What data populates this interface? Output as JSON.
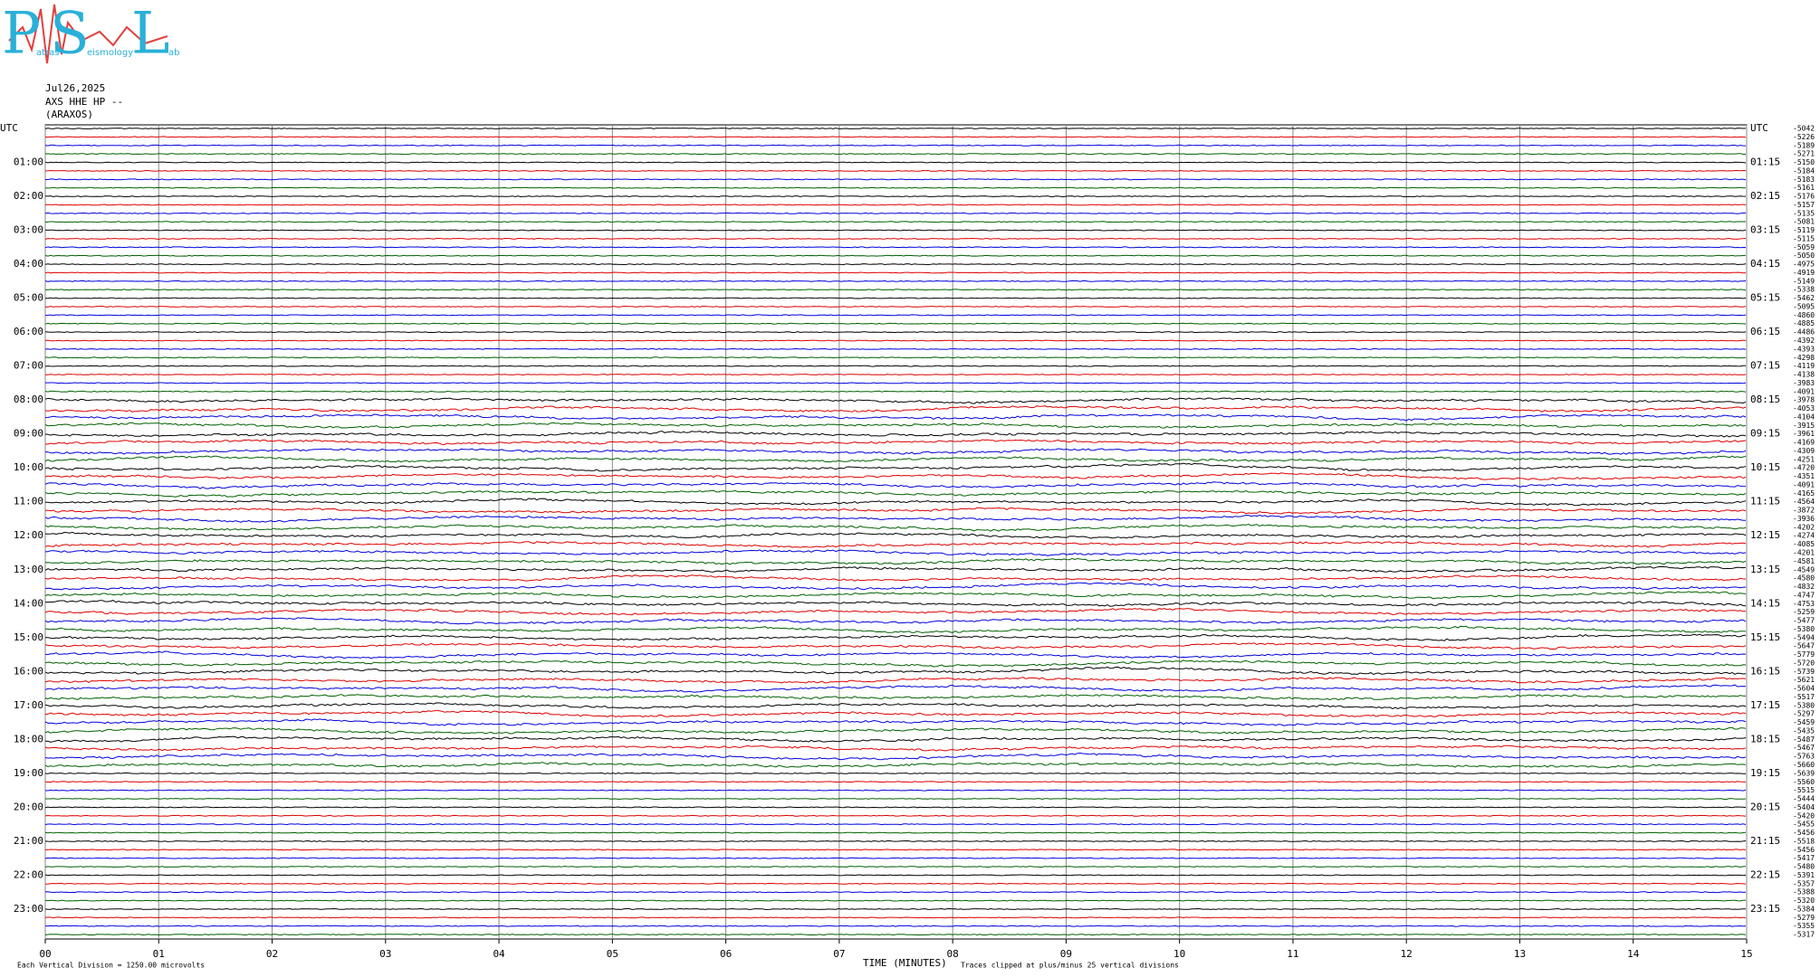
{
  "chart_data": {
    "type": "helicorder",
    "logo": {
      "letters": [
        "P",
        "S",
        "L"
      ],
      "words": [
        "atras",
        "eismology",
        "ab"
      ]
    },
    "header": [
      "Jul26,2025",
      "AXS HHE HP --",
      "(ARAXOS)"
    ],
    "left_labels": [
      "UTC",
      "01:00",
      "02:00",
      "03:00",
      "04:00",
      "05:00",
      "06:00",
      "07:00",
      "08:00",
      "09:00",
      "10:00",
      "11:00",
      "12:00",
      "13:00",
      "14:00",
      "15:00",
      "16:00",
      "17:00",
      "18:00",
      "19:00",
      "20:00",
      "21:00",
      "22:00",
      "23:00"
    ],
    "right_labels": [
      "UTC",
      "01:15",
      "02:15",
      "03:15",
      "04:15",
      "05:15",
      "06:15",
      "07:15",
      "08:15",
      "09:15",
      "10:15",
      "11:15",
      "12:15",
      "13:15",
      "14:15",
      "15:15",
      "16:15",
      "17:15",
      "18:15",
      "19:15",
      "20:15",
      "21:15",
      "22:15",
      "23:15"
    ],
    "trace_colors": [
      "#000000",
      "#e00000",
      "#0000e0",
      "#006000"
    ],
    "offsets": [
      -5042,
      -5226,
      -5189,
      -5271,
      -5150,
      -5184,
      -5183,
      -5161,
      -5176,
      -5157,
      -5135,
      -5081,
      -5119,
      -5115,
      -5059,
      -5050,
      -4975,
      -4919,
      -5149,
      -5338,
      -5462,
      -5095,
      -4860,
      -4885,
      -4486,
      -4392,
      -4393,
      -4298,
      -4119,
      -4138,
      -3983,
      -4091,
      -3978,
      -4053,
      -4104,
      -3915,
      -3961,
      -4169,
      -4309,
      -4251,
      -4720,
      -4351,
      -4091,
      -4165,
      -4564,
      -3872,
      -3936,
      -4202,
      -4274,
      -4085,
      -4201,
      -4581,
      -4549,
      -4580,
      -4832,
      -4747,
      -4753,
      -5259,
      -5477,
      -5380,
      -5494,
      -5647,
      -5779,
      -5720,
      -5739,
      -5621,
      -5604,
      -5517,
      -5380,
      -5297,
      -5459,
      -5435,
      -5487,
      -5467,
      -5763,
      -5660,
      -5639,
      -5560,
      -5515,
      -5444,
      -5404,
      -5420,
      -5455,
      -5456,
      -5518,
      -5456,
      -5417,
      -5480,
      -5391,
      -5357,
      -5388,
      -5320,
      -5384,
      -5279,
      -5355,
      -5317
    ],
    "xlim": [
      0,
      15
    ],
    "xticks": [
      {
        "value": 0,
        "label": "00"
      },
      {
        "value": 1,
        "label": "01"
      },
      {
        "value": 2,
        "label": "02"
      },
      {
        "value": 3,
        "label": "03"
      },
      {
        "value": 4,
        "label": "04"
      },
      {
        "value": 5,
        "label": "05"
      },
      {
        "value": 6,
        "label": "06"
      },
      {
        "value": 7,
        "label": "07"
      },
      {
        "value": 8,
        "label": "08"
      },
      {
        "value": 9,
        "label": "09"
      },
      10,
      11,
      12,
      13,
      14,
      15
    ],
    "xlabel": "TIME (MINUTES)",
    "scale_note": "Each Vertical Division = 1250.00 microvolts",
    "clip_note": "Traces clipped at plus/minus 25 vertical divisions"
  }
}
